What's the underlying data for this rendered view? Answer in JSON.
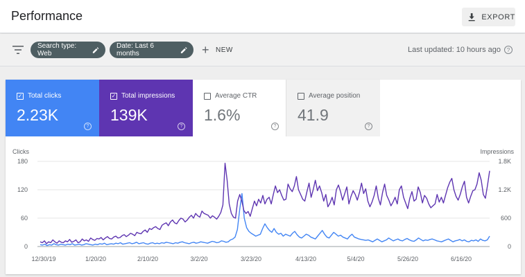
{
  "header": {
    "title": "Performance",
    "export_label": "EXPORT"
  },
  "toolbar": {
    "chips": [
      {
        "label": "Search type: Web"
      },
      {
        "label": "Date: Last 6 months"
      }
    ],
    "new_label": "NEW",
    "last_updated": "Last updated: 10 hours ago"
  },
  "metrics": [
    {
      "label": "Total clicks",
      "value": "2.23K",
      "checked": true
    },
    {
      "label": "Total impressions",
      "value": "139K",
      "checked": true
    },
    {
      "label": "Average CTR",
      "value": "1.6%",
      "checked": false
    },
    {
      "label": "Average position",
      "value": "41.9",
      "checked": false
    }
  ],
  "colors": {
    "clicks": "#4285f4",
    "impressions": "#5e35b1"
  },
  "chart_data": {
    "type": "line",
    "left_axis_label": "Clicks",
    "right_axis_label": "Impressions",
    "left_ticks": [
      "0",
      "60",
      "120",
      "180"
    ],
    "right_ticks": [
      "0",
      "600",
      "1.2K",
      "1.8K"
    ],
    "left_range": [
      0,
      180
    ],
    "right_range": [
      0,
      1800
    ],
    "x_ticks": [
      "12/30/19",
      "1/20/20",
      "2/10/20",
      "3/2/20",
      "3/23/20",
      "4/13/20",
      "5/4/20",
      "5/26/20",
      "6/16/20"
    ],
    "grid": true,
    "series": [
      {
        "name": "Clicks",
        "axis": "left",
        "values": [
          4,
          3,
          5,
          2,
          4,
          3,
          6,
          4,
          3,
          5,
          4,
          3,
          5,
          4,
          6,
          3,
          4,
          5,
          3,
          4,
          6,
          5,
          4,
          3,
          5,
          4,
          6,
          5,
          7,
          4,
          5,
          6,
          5,
          7,
          6,
          8,
          5,
          6,
          7,
          8,
          6,
          7,
          9,
          6,
          7,
          8,
          6,
          5,
          7,
          8,
          6,
          7,
          6,
          8,
          7,
          9,
          8,
          7,
          6,
          8,
          7,
          9,
          10,
          8,
          7,
          6,
          8,
          9,
          7,
          8,
          10,
          9,
          8,
          7,
          9,
          11,
          10,
          8,
          9,
          12,
          11,
          9,
          10,
          14,
          16,
          20,
          36,
          78,
          112,
          60,
          40,
          32,
          28,
          25,
          22,
          24,
          26,
          38,
          48,
          40,
          34,
          30,
          38,
          30,
          26,
          28,
          22,
          26,
          24,
          22,
          28,
          32,
          25,
          20,
          18,
          22,
          26,
          24,
          20,
          18,
          16,
          22,
          28,
          34,
          26,
          20,
          18,
          24,
          30,
          26,
          22,
          24,
          20,
          18,
          16,
          22,
          26,
          20,
          18,
          16,
          15,
          14,
          13,
          14,
          12,
          10,
          13,
          16,
          13,
          10,
          12,
          14,
          18,
          15,
          12,
          14,
          16,
          13,
          12,
          15,
          17,
          14,
          12,
          11,
          14,
          18,
          15,
          12,
          14,
          13,
          15,
          16,
          14,
          12,
          11,
          10,
          12,
          14,
          16,
          13,
          10,
          12,
          13,
          15,
          12,
          14,
          11,
          10,
          13,
          12,
          14,
          11,
          16,
          13,
          12,
          14,
          22
        ]
      },
      {
        "name": "Impressions",
        "axis": "left",
        "values": [
          10,
          8,
          12,
          6,
          10,
          8,
          14,
          10,
          7,
          12,
          9,
          8,
          12,
          10,
          15,
          9,
          11,
          14,
          8,
          10,
          16,
          12,
          14,
          11,
          18,
          15,
          13,
          17,
          16,
          19,
          14,
          18,
          21,
          17,
          16,
          20,
          22,
          18,
          19,
          23,
          25,
          21,
          24,
          28,
          26,
          23,
          30,
          28,
          27,
          32,
          35,
          30,
          38,
          36,
          40,
          42,
          38,
          36,
          45,
          48,
          50,
          44,
          52,
          56,
          50,
          48,
          55,
          60,
          58,
          52,
          56,
          62,
          66,
          60,
          70,
          65,
          62,
          75,
          70,
          68,
          66,
          60,
          65,
          62,
          58,
          64,
          72,
          88,
          176,
          140,
          90,
          70,
          62,
          60,
          96,
          110,
          96,
          76,
          70,
          74,
          64,
          80,
          96,
          86,
          100,
          92,
          108,
          90,
          100,
          104,
          90,
          110,
          128,
          114,
          120,
          108,
          98,
          100,
          132,
          122,
          116,
          128,
          148,
          120,
          110,
          100,
          96,
          116,
          134,
          104,
          120,
          140,
          118,
          128,
          114,
          96,
          110,
          84,
          92,
          104,
          88,
          120,
          130,
          116,
          98,
          112,
          126,
          90,
          106,
          118,
          110,
          98,
          114,
          134,
          112,
          122,
          96,
          84,
          94,
          108,
          128,
          102,
          88,
          114,
          132,
          108,
          98,
          86,
          94,
          104,
          90,
          120,
          128,
          104,
          92,
          80,
          102,
          116,
          96,
          100,
          126,
          114,
          92,
          108,
          102,
          90,
          82,
          86,
          90,
          110,
          94,
          104,
          92,
          108,
          124,
          136,
          144,
          120,
          106,
          98,
          110,
          126,
          138,
          104,
          92,
          106,
          118,
          120,
          132,
          156,
          140,
          110,
          102,
          130,
          160
        ]
      }
    ]
  }
}
